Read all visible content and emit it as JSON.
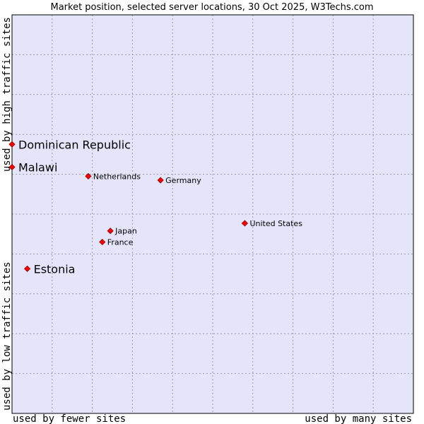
{
  "chart_data": {
    "type": "scatter",
    "title": "Market position, selected server locations, 30 Oct 2025, W3Techs.com",
    "xlabel_left": "used by fewer sites",
    "xlabel_right": "used by many sites",
    "ylabel_top": "used by high traffic sites",
    "ylabel_bottom": "used by low traffic sites",
    "xlim": [
      0,
      10
    ],
    "ylim": [
      0,
      10
    ],
    "grid": true,
    "colors": {
      "plot_background": "#e5e5f9",
      "grid": "#9b9bb0",
      "border": "#000000",
      "marker": "#ff0000",
      "marker_outline": "#8b0000"
    },
    "points": [
      {
        "label": "Dominican Republic",
        "x": 0.0,
        "y": 6.75,
        "label_size": "large"
      },
      {
        "label": "Malawi",
        "x": 0.0,
        "y": 6.18,
        "label_size": "large"
      },
      {
        "label": "Netherlands",
        "x": 1.9,
        "y": 5.95,
        "label_size": "small"
      },
      {
        "label": "Germany",
        "x": 3.7,
        "y": 5.85,
        "label_size": "small"
      },
      {
        "label": "United States",
        "x": 5.8,
        "y": 4.77,
        "label_size": "small"
      },
      {
        "label": "Japan",
        "x": 2.45,
        "y": 4.58,
        "label_size": "small"
      },
      {
        "label": "France",
        "x": 2.25,
        "y": 4.3,
        "label_size": "small"
      },
      {
        "label": "Estonia",
        "x": 0.38,
        "y": 3.63,
        "label_size": "large"
      }
    ]
  }
}
